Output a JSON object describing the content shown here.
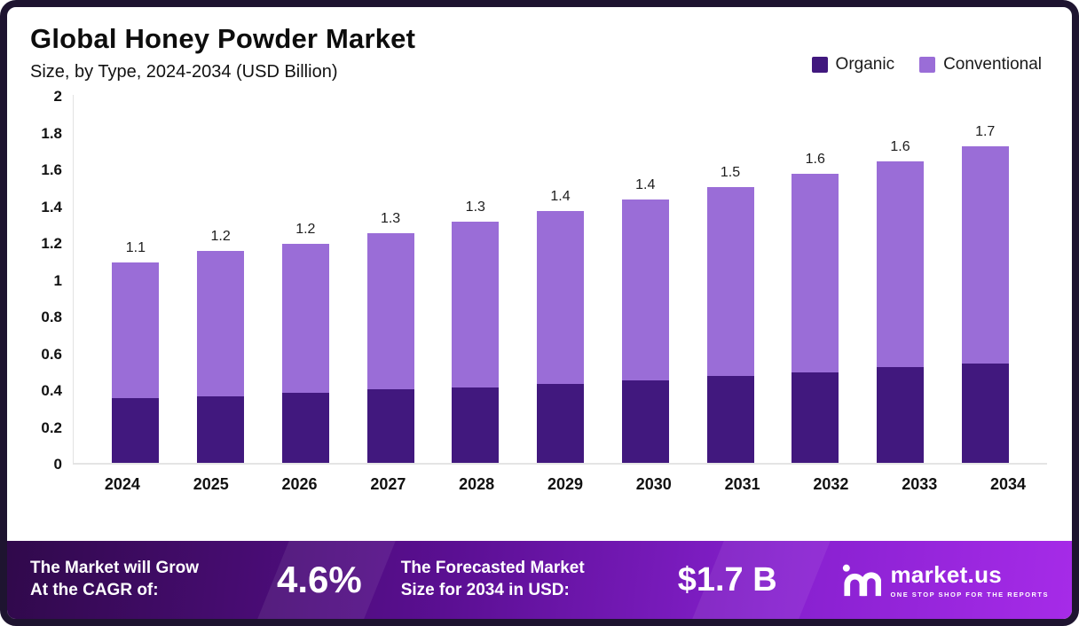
{
  "header": {
    "title": "Global Honey Powder Market",
    "subtitle": "Size, by Type, 2024-2034 (USD Billion)"
  },
  "chart_data": {
    "type": "bar",
    "stacked": true,
    "title": "Global Honey Powder Market",
    "subtitle": "Size, by Type, 2024-2034 (USD Billion)",
    "categories": [
      "2024",
      "2025",
      "2026",
      "2027",
      "2028",
      "2029",
      "2030",
      "2031",
      "2032",
      "2033",
      "2034"
    ],
    "series": [
      {
        "name": "Organic",
        "color": "#41187E",
        "values": [
          0.35,
          0.36,
          0.38,
          0.4,
          0.41,
          0.43,
          0.45,
          0.47,
          0.49,
          0.52,
          0.54
        ]
      },
      {
        "name": "Conventional",
        "color": "#9A6DD7",
        "values": [
          0.74,
          0.79,
          0.81,
          0.85,
          0.9,
          0.94,
          0.98,
          1.03,
          1.08,
          1.12,
          1.18
        ]
      }
    ],
    "totals": [
      1.09,
      1.15,
      1.19,
      1.25,
      1.31,
      1.37,
      1.43,
      1.5,
      1.57,
      1.64,
      1.72
    ],
    "total_labels": [
      "1.1",
      "1.2",
      "1.2",
      "1.3",
      "1.3",
      "1.4",
      "1.4",
      "1.5",
      "1.6",
      "1.6",
      "1.7"
    ],
    "ylim": [
      0,
      2
    ],
    "yticks": [
      0,
      0.2,
      0.4,
      0.6,
      0.8,
      1,
      1.2,
      1.4,
      1.6,
      1.8,
      2
    ],
    "ytick_labels": [
      "0",
      "0.2",
      "0.4",
      "0.6",
      "0.8",
      "1",
      "1.2",
      "1.4",
      "1.6",
      "1.8",
      "2"
    ],
    "grid": false,
    "legend_position": "top-right"
  },
  "footer": {
    "cagr_label": "The Market will Grow\nAt the CAGR of:",
    "cagr_value": "4.6%",
    "forecast_label": "The Forecasted Market\nSize for 2034 in USD:",
    "forecast_value": "$1.7 B",
    "brand": "market.us",
    "brand_tagline": "ONE STOP SHOP FOR THE REPORTS"
  },
  "colors": {
    "organic": "#41187E",
    "conventional": "#9A6DD7",
    "frame_border": "#1E1430",
    "footer_gradient_start": "#30094B",
    "footer_gradient_end": "#A62BE8",
    "text": "#111111"
  }
}
